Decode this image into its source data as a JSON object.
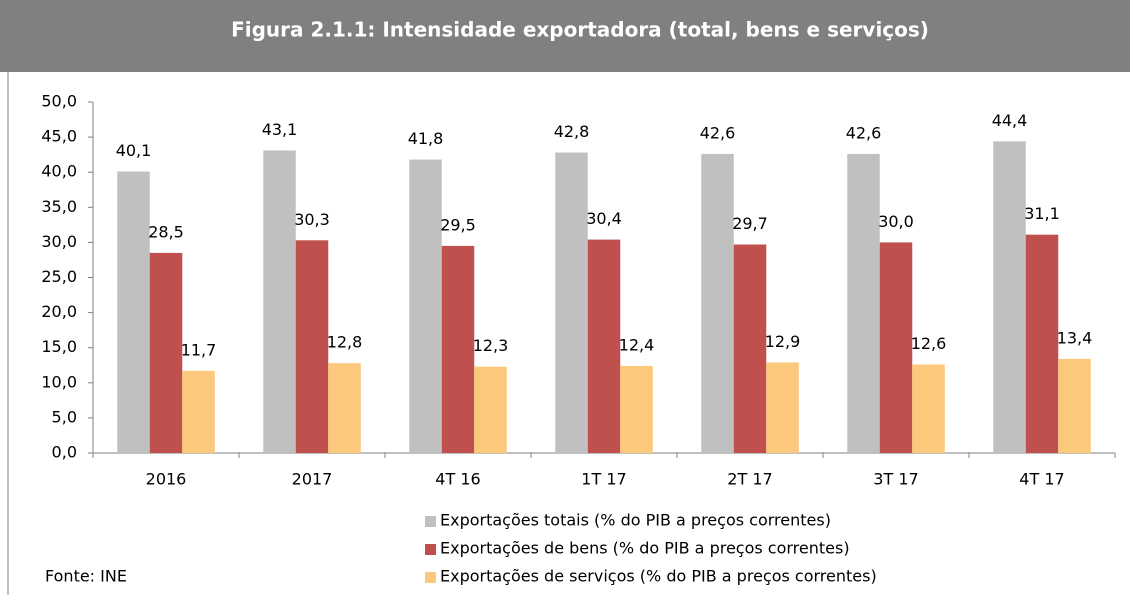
{
  "chart_data": {
    "type": "bar",
    "title": "Figura 2.1.1: Intensidade exportadora (total, bens e serviços)",
    "categories": [
      "2016",
      "2017",
      "4T 16",
      "1T 17",
      "2T 17",
      "3T 17",
      "4T 17"
    ],
    "series": [
      {
        "name": "Exportações totais (% do PIB a preços correntes)",
        "color": "#c0c0c0",
        "values": [
          40.1,
          43.1,
          41.8,
          42.8,
          42.6,
          42.6,
          44.4
        ],
        "value_labels": [
          "40,1",
          "43,1",
          "41,8",
          "42,8",
          "42,6",
          "42,6",
          "44,4"
        ]
      },
      {
        "name": "Exportações de bens (% do PIB a preços correntes)",
        "color": "#c0504d",
        "values": [
          28.5,
          30.3,
          29.5,
          30.4,
          29.7,
          30.0,
          31.1
        ],
        "value_labels": [
          "28,5",
          "30,3",
          "29,5",
          "30,4",
          "29,7",
          "30,0",
          "31,1"
        ]
      },
      {
        "name": "Exportações de serviços (% do PIB a preços correntes)",
        "color": "#fcc97c",
        "values": [
          11.7,
          12.8,
          12.3,
          12.4,
          12.9,
          12.6,
          13.4
        ],
        "value_labels": [
          "11,7",
          "12,8",
          "12,3",
          "12,4",
          "12,9",
          "12,6",
          "13,4"
        ]
      }
    ],
    "ylim": [
      0,
      50
    ],
    "yticks": [
      {
        "value": 0,
        "label": "0,0"
      },
      {
        "value": 5,
        "label": "5,0"
      },
      {
        "value": 10,
        "label": "10,0"
      },
      {
        "value": 15,
        "label": "15,0"
      },
      {
        "value": 20,
        "label": "20,0"
      },
      {
        "value": 25,
        "label": "25,0"
      },
      {
        "value": 30,
        "label": "30,0"
      },
      {
        "value": 35,
        "label": "35,0"
      },
      {
        "value": 40,
        "label": "40,0"
      },
      {
        "value": 45,
        "label": "45,0"
      },
      {
        "value": 50,
        "label": "50,0"
      }
    ],
    "source": "Fonte: INE"
  }
}
